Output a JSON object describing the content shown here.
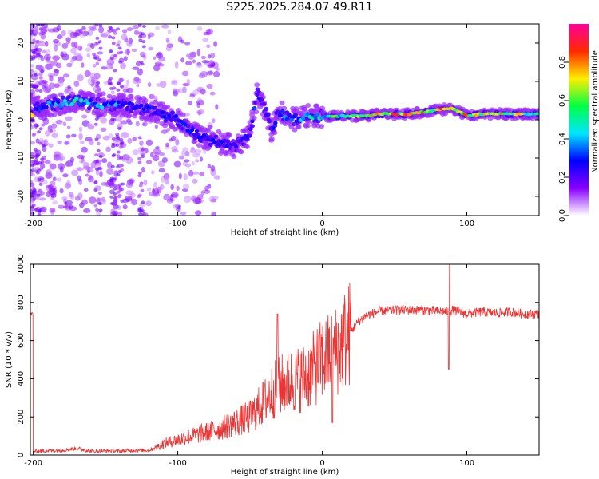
{
  "title": "S225.2025.284.07.49.R11",
  "chart_data": [
    {
      "type": "heatmap",
      "xlabel": "Height of straight line (km)",
      "ylabel": "Frequency (Hz)",
      "xlim": [
        -202,
        150
      ],
      "ylim": [
        -25,
        25
      ],
      "xticks": [
        -200,
        -100,
        0,
        100
      ],
      "yticks": [
        -20,
        -10,
        0,
        10,
        20
      ],
      "colorbar": {
        "label": "Normalized spectral amplitude",
        "range": [
          0,
          1
        ],
        "ticks": [
          0.0,
          0.2,
          0.4,
          0.6,
          0.8
        ],
        "colormap": [
          "#ffffff",
          "#8800ff",
          "#0000ff",
          "#00e5ff",
          "#00ff44",
          "#ffee00",
          "#ff2a00",
          "#ff0099"
        ]
      },
      "ridge": [
        {
          "x": -200,
          "f": 3,
          "amp": 0.3
        },
        {
          "x": -185,
          "f": 4,
          "amp": 0.45
        },
        {
          "x": -170,
          "f": 5,
          "amp": 0.55
        },
        {
          "x": -155,
          "f": 4,
          "amp": 0.45
        },
        {
          "x": -140,
          "f": 4,
          "amp": 0.4
        },
        {
          "x": -125,
          "f": 3,
          "amp": 0.35
        },
        {
          "x": -115,
          "f": 2,
          "amp": 0.3
        },
        {
          "x": -100,
          "f": 0,
          "amp": 0.3
        },
        {
          "x": -90,
          "f": -3,
          "amp": 0.3
        },
        {
          "x": -80,
          "f": -5,
          "amp": 0.3
        },
        {
          "x": -70,
          "f": -6,
          "amp": 0.3
        },
        {
          "x": -60,
          "f": -7,
          "amp": 0.3
        },
        {
          "x": -50,
          "f": -4,
          "amp": 0.3
        },
        {
          "x": -45,
          "f": 7,
          "amp": 0.35
        },
        {
          "x": -40,
          "f": 3,
          "amp": 0.3
        },
        {
          "x": -35,
          "f": -3,
          "amp": 0.3
        },
        {
          "x": -30,
          "f": 2,
          "amp": 0.35
        },
        {
          "x": -20,
          "f": 0,
          "amp": 0.4
        },
        {
          "x": -10,
          "f": 1,
          "amp": 0.5
        },
        {
          "x": 0,
          "f": 1,
          "amp": 0.55
        },
        {
          "x": 10,
          "f": 1,
          "amp": 0.65
        },
        {
          "x": 20,
          "f": 1,
          "amp": 0.7
        },
        {
          "x": 30,
          "f": 1,
          "amp": 0.75
        },
        {
          "x": 40,
          "f": 1.5,
          "amp": 0.85
        },
        {
          "x": 60,
          "f": 1.5,
          "amp": 0.88
        },
        {
          "x": 80,
          "f": 2.5,
          "amp": 0.85
        },
        {
          "x": 90,
          "f": 3,
          "amp": 0.9
        },
        {
          "x": 100,
          "f": 1,
          "amp": 0.85
        },
        {
          "x": 110,
          "f": 1.5,
          "amp": 0.8
        },
        {
          "x": 130,
          "f": 1.5,
          "amp": 0.75
        },
        {
          "x": 150,
          "f": 1.5,
          "amp": 0.7
        }
      ]
    },
    {
      "type": "line",
      "xlabel": "Height of straight line (km)",
      "ylabel": "SNR (10 * v/v)",
      "xlim": [
        -202,
        150
      ],
      "ylim": [
        0,
        1000
      ],
      "xticks": [
        -200,
        -100,
        0,
        100
      ],
      "yticks": [
        0,
        200,
        400,
        600,
        800,
        1000
      ],
      "color": "#ee3333",
      "series": [
        {
          "x": [
            -200,
            -190,
            -180,
            -170,
            -160,
            -150,
            -140,
            -130,
            -120,
            -115,
            -110,
            -100,
            -90,
            -80,
            -70,
            -60,
            -50,
            -45,
            -40,
            -35,
            -30,
            -25,
            -20,
            -15,
            -10,
            -5,
            0,
            5,
            10,
            15,
            20,
            25,
            30,
            40,
            50,
            60,
            70,
            80,
            88,
            90,
            100,
            110,
            120,
            130,
            140,
            150
          ],
          "values": [
            20,
            22,
            25,
            35,
            20,
            22,
            20,
            25,
            25,
            40,
            60,
            80,
            100,
            120,
            140,
            170,
            200,
            240,
            280,
            330,
            360,
            380,
            390,
            400,
            420,
            460,
            500,
            520,
            550,
            600,
            650,
            700,
            730,
            755,
            760,
            760,
            760,
            755,
            750,
            760,
            740,
            750,
            745,
            750,
            740,
            740
          ]
        }
      ]
    }
  ]
}
